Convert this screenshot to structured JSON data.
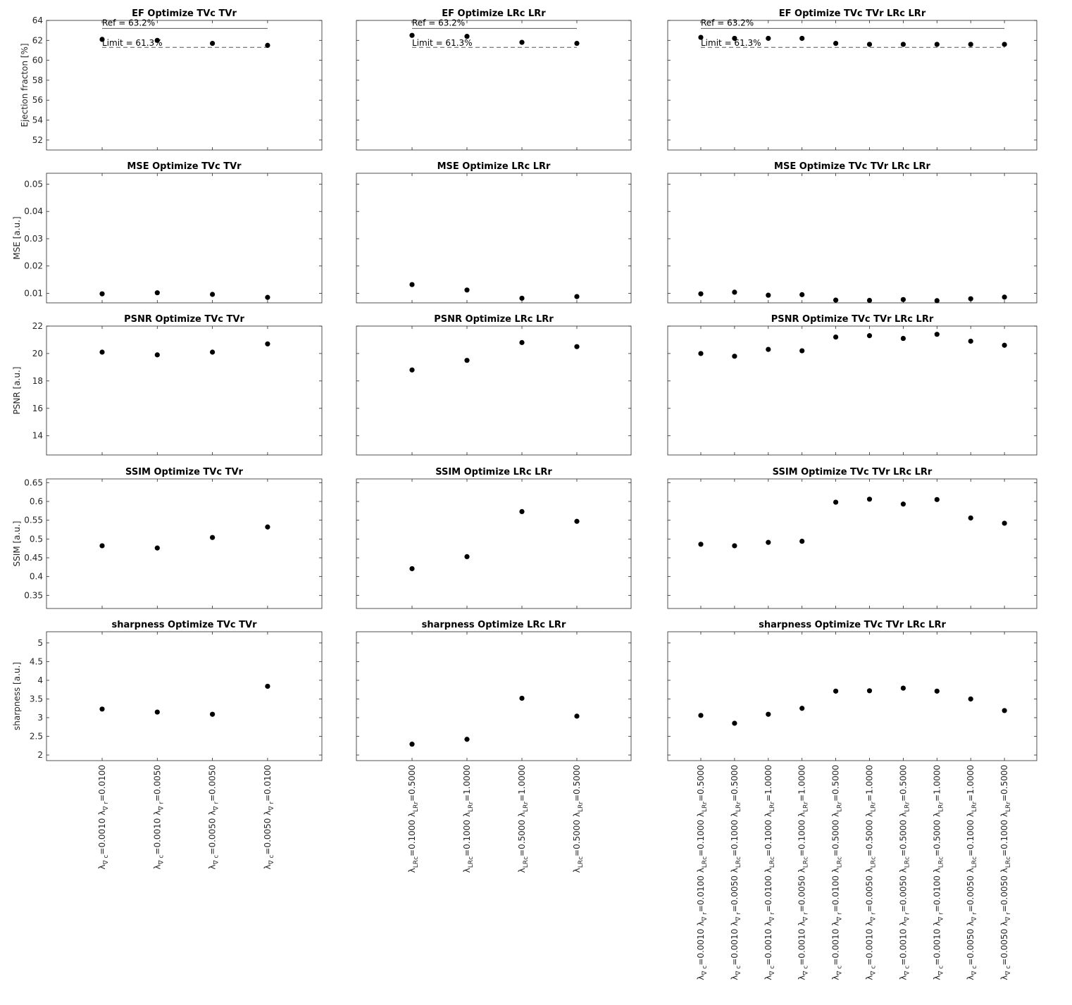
{
  "figure": {
    "rows": [
      {
        "metric": "EF",
        "ylabel": "Ejection fracton [%]",
        "ylim": [
          51,
          64
        ],
        "yticks": [
          52,
          54,
          56,
          58,
          60,
          62,
          64
        ]
      },
      {
        "metric": "MSE",
        "ylabel": "MSE [a.u.]",
        "ylim": [
          0.0065,
          0.054
        ],
        "yticks": [
          0.01,
          0.02,
          0.03,
          0.04,
          0.05
        ]
      },
      {
        "metric": "PSNR",
        "ylabel": "PSNR [a.u.]",
        "ylim": [
          12.6,
          22
        ],
        "yticks": [
          14,
          16,
          18,
          20,
          22
        ]
      },
      {
        "metric": "SSIM",
        "ylabel": "SSIM [a.u.]",
        "ylim": [
          0.315,
          0.66
        ],
        "yticks": [
          0.35,
          0.4,
          0.45,
          0.5,
          0.55,
          0.6,
          0.65
        ]
      },
      {
        "metric": "sharpness",
        "ylabel": "sharpness [a.u.]",
        "ylim": [
          1.85,
          5.3
        ],
        "yticks": [
          2,
          2.5,
          3,
          3.5,
          4,
          4.5,
          5
        ]
      }
    ],
    "columns": [
      {
        "suffix": "Optimize TVc TVr",
        "xticklabels": [
          "λ∇c=0.0010 λ∇r=0.0100",
          "λ∇c=0.0010 λ∇r=0.0050",
          "λ∇c=0.0050 λ∇r=0.0050",
          "λ∇c=0.0050 λ∇r=0.0100"
        ]
      },
      {
        "suffix": "Optimize LRc LRr",
        "xticklabels": [
          "λLRc=0.1000 λLRr=0.5000",
          "λLRc=0.1000 λLRr=1.0000",
          "λLRc=0.5000 λLRr=1.0000",
          "λLRc=0.5000 λLRr=0.5000"
        ]
      },
      {
        "suffix": "Optimize TVc TVr LRc LRr",
        "xticklabels": [
          "λ∇c=0.0010 λ∇r=0.0100 λLRc=0.1000 λLRr=0.5000",
          "λ∇c=0.0010 λ∇r=0.0050 λLRc=0.1000 λLRr=0.5000",
          "λ∇c=0.0010 λ∇r=0.0100 λLRc=0.1000 λLRr=1.0000",
          "λ∇c=0.0010 λ∇r=0.0050 λLRc=0.1000 λLRr=1.0000",
          "λ∇c=0.0010 λ∇r=0.0100 λLRc=0.5000 λLRr=0.5000",
          "λ∇c=0.0010 λ∇r=0.0050 λLRc=0.5000 λLRr=1.0000",
          "λ∇c=0.0010 λ∇r=0.0050 λLRc=0.5000 λLRr=0.5000",
          "λ∇c=0.0010 λ∇r=0.0100 λLRc=0.5000 λLRr=1.0000",
          "λ∇c=0.0050 λ∇r=0.0050 λLRc=0.1000 λLRr=1.0000",
          "λ∇c=0.0050 λ∇r=0.0050 λLRc=0.1000 λLRr=0.5000"
        ]
      }
    ],
    "ef_reference": {
      "ref_value": 63.2,
      "ref_label": "Ref = 63.2%",
      "limit_value": 61.3,
      "limit_label": "Limit = 61.3%"
    }
  },
  "chart_data": [
    {
      "type": "scatter",
      "title": "EF Optimize TVc TVr",
      "ylabel": "Ejection fracton [%]",
      "ylim": [
        51,
        64
      ],
      "x": [
        1,
        2,
        3,
        4
      ],
      "values": [
        62.1,
        62.0,
        61.7,
        61.5
      ]
    },
    {
      "type": "scatter",
      "title": "EF Optimize LRc LRr",
      "ylabel": "",
      "ylim": [
        51,
        64
      ],
      "x": [
        1,
        2,
        3,
        4
      ],
      "values": [
        62.5,
        62.4,
        61.8,
        61.7
      ]
    },
    {
      "type": "scatter",
      "title": "EF Optimize TVc TVr LRc LRr",
      "ylabel": "",
      "ylim": [
        51,
        64
      ],
      "x": [
        1,
        2,
        3,
        4,
        5,
        6,
        7,
        8,
        9,
        10
      ],
      "values": [
        62.3,
        62.2,
        62.2,
        62.2,
        61.7,
        61.6,
        61.6,
        61.6,
        61.6,
        61.6
      ]
    },
    {
      "type": "scatter",
      "title": "MSE Optimize TVc TVr",
      "ylabel": "MSE [a.u.]",
      "ylim": [
        0.0065,
        0.054
      ],
      "x": [
        1,
        2,
        3,
        4
      ],
      "values": [
        0.0098,
        0.0102,
        0.0096,
        0.0085
      ]
    },
    {
      "type": "scatter",
      "title": "MSE Optimize LRc LRr",
      "ylabel": "",
      "ylim": [
        0.0065,
        0.054
      ],
      "x": [
        1,
        2,
        3,
        4
      ],
      "values": [
        0.0132,
        0.0112,
        0.0082,
        0.0088
      ]
    },
    {
      "type": "scatter",
      "title": "MSE Optimize TVc TVr LRc LRr",
      "ylabel": "",
      "ylim": [
        0.0065,
        0.054
      ],
      "x": [
        1,
        2,
        3,
        4,
        5,
        6,
        7,
        8,
        9,
        10
      ],
      "values": [
        0.0098,
        0.0104,
        0.0093,
        0.0095,
        0.0075,
        0.0074,
        0.0077,
        0.0073,
        0.008,
        0.0086
      ]
    },
    {
      "type": "scatter",
      "title": "PSNR Optimize TVc TVr",
      "ylabel": "PSNR [a.u.]",
      "ylim": [
        12.6,
        22
      ],
      "x": [
        1,
        2,
        3,
        4
      ],
      "values": [
        20.1,
        19.9,
        20.1,
        20.7
      ]
    },
    {
      "type": "scatter",
      "title": "PSNR Optimize LRc LRr",
      "ylabel": "",
      "ylim": [
        12.6,
        22
      ],
      "x": [
        1,
        2,
        3,
        4
      ],
      "values": [
        18.8,
        19.5,
        20.8,
        20.5
      ]
    },
    {
      "type": "scatter",
      "title": "PSNR Optimize TVc TVr LRc LRr",
      "ylabel": "",
      "ylim": [
        12.6,
        22
      ],
      "x": [
        1,
        2,
        3,
        4,
        5,
        6,
        7,
        8,
        9,
        10
      ],
      "values": [
        20.0,
        19.8,
        20.3,
        20.2,
        21.2,
        21.3,
        21.1,
        21.4,
        20.9,
        20.6
      ]
    },
    {
      "type": "scatter",
      "title": "SSIM Optimize TVc TVr",
      "ylabel": "SSIM [a.u.]",
      "ylim": [
        0.315,
        0.66
      ],
      "x": [
        1,
        2,
        3,
        4
      ],
      "values": [
        0.482,
        0.476,
        0.504,
        0.532
      ]
    },
    {
      "type": "scatter",
      "title": "SSIM Optimize LRc LRr",
      "ylabel": "",
      "ylim": [
        0.315,
        0.66
      ],
      "x": [
        1,
        2,
        3,
        4
      ],
      "values": [
        0.421,
        0.453,
        0.573,
        0.547
      ]
    },
    {
      "type": "scatter",
      "title": "SSIM Optimize TVc TVr LRc LRr",
      "ylabel": "",
      "ylim": [
        0.315,
        0.66
      ],
      "x": [
        1,
        2,
        3,
        4,
        5,
        6,
        7,
        8,
        9,
        10
      ],
      "values": [
        0.486,
        0.482,
        0.491,
        0.494,
        0.598,
        0.606,
        0.593,
        0.605,
        0.556,
        0.542
      ]
    },
    {
      "type": "scatter",
      "title": "sharpness Optimize TVc TVr",
      "ylabel": "sharpness [a.u.]",
      "ylim": [
        1.85,
        5.3
      ],
      "x": [
        1,
        2,
        3,
        4
      ],
      "values": [
        3.23,
        3.15,
        3.09,
        3.84
      ]
    },
    {
      "type": "scatter",
      "title": "sharpness Optimize LRc LRr",
      "ylabel": "",
      "ylim": [
        1.85,
        5.3
      ],
      "x": [
        1,
        2,
        3,
        4
      ],
      "values": [
        2.29,
        2.42,
        3.52,
        3.04
      ]
    },
    {
      "type": "scatter",
      "title": "sharpness Optimize TVc TVr LRc LRr",
      "ylabel": "",
      "ylim": [
        1.85,
        5.3
      ],
      "x": [
        1,
        2,
        3,
        4,
        5,
        6,
        7,
        8,
        9,
        10
      ],
      "values": [
        3.06,
        2.85,
        3.09,
        3.25,
        3.71,
        3.72,
        3.79,
        3.71,
        3.5,
        3.19
      ]
    }
  ]
}
